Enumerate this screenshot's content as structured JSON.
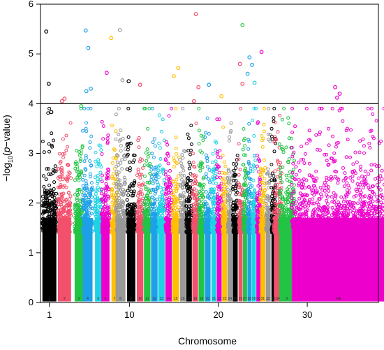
{
  "chart_data": {
    "type": "scatter",
    "title": "",
    "xlabel": "Chromosome",
    "ylabel_prefix": "−log",
    "ylabel_sub": "10",
    "ylabel_open": "(",
    "ylabel_italic": "p",
    "ylabel_rest": "−value)",
    "ylim": [
      0,
      6
    ],
    "xlim": [
      0,
      38
    ],
    "y_ticks": [
      "0",
      "1",
      "2",
      "3",
      "4",
      "5",
      "6"
    ],
    "x_ticks": [
      {
        "x": 1,
        "label": "1"
      },
      {
        "x": 10,
        "label": "10"
      },
      {
        "x": 20,
        "label": "20"
      },
      {
        "x": 30,
        "label": "30"
      }
    ],
    "threshold": 4,
    "colors": [
      "#000000",
      "#F2506C",
      "#22C444",
      "#1EA0E8",
      "#1DD3E3",
      "#EE00CC",
      "#FFC000",
      "#999999"
    ],
    "chromosome_labels": [
      "1",
      "2",
      "3",
      "4",
      "5",
      "6",
      "7",
      "8",
      "9",
      "10",
      "11",
      "12",
      "13",
      "14",
      "15",
      "16",
      "17",
      "18",
      "19",
      "20",
      "21",
      "22",
      "23",
      "24",
      "25",
      "26",
      "27",
      "28",
      "29",
      "30",
      "31",
      "32",
      "33",
      "34",
      "X",
      "NA"
    ],
    "chromosome_x_centers": [
      1.0,
      2.7,
      4.3,
      5.3,
      6.5,
      7.3,
      8.3,
      9.0,
      10.2,
      11.2,
      12.0,
      12.8,
      13.6,
      14.4,
      15.2,
      16.0,
      16.7,
      17.4,
      18.1,
      18.8,
      19.5,
      20.1,
      20.7,
      21.3,
      21.9,
      22.5,
      23.0,
      23.5,
      24.0,
      24.5,
      25.0,
      25.6,
      26.2,
      26.7,
      27.7,
      33.5
    ],
    "chromosome_palette_index": [
      0,
      1,
      2,
      3,
      4,
      5,
      6,
      7,
      0,
      1,
      2,
      3,
      4,
      5,
      6,
      7,
      0,
      1,
      2,
      3,
      4,
      5,
      6,
      7,
      0,
      1,
      2,
      3,
      4,
      5,
      6,
      7,
      0,
      1,
      2,
      5
    ],
    "significant_hits": [
      {
        "chr": "1",
        "y": 5.45
      },
      {
        "chr": "1",
        "y": 4.4
      },
      {
        "chr": "1",
        "y": 3.83
      },
      {
        "chr": "2",
        "y": 4.05
      },
      {
        "chr": "2",
        "y": 4.1
      },
      {
        "chr": "3",
        "y": 3.95
      },
      {
        "chr": "4",
        "y": 5.47
      },
      {
        "chr": "4",
        "y": 5.12
      },
      {
        "chr": "4",
        "y": 4.3
      },
      {
        "chr": "4",
        "y": 4.25
      },
      {
        "chr": "6",
        "y": 4.62
      },
      {
        "chr": "7",
        "y": 5.32
      },
      {
        "chr": "8",
        "y": 5.48
      },
      {
        "chr": "8",
        "y": 4.47
      },
      {
        "chr": "9",
        "y": 4.45
      },
      {
        "chr": "10",
        "y": 4.38
      },
      {
        "chr": "15",
        "y": 4.72
      },
      {
        "chr": "15",
        "y": 4.55
      },
      {
        "chr": "18",
        "y": 5.8
      },
      {
        "chr": "18",
        "y": 4.33
      },
      {
        "chr": "18",
        "y": 4.05
      },
      {
        "chr": "20",
        "y": 4.38
      },
      {
        "chr": "23",
        "y": 4.15
      },
      {
        "chr": "26",
        "y": 4.8
      },
      {
        "chr": "26",
        "y": 4.4
      },
      {
        "chr": "27",
        "y": 5.58
      },
      {
        "chr": "28",
        "y": 4.93
      },
      {
        "chr": "28",
        "y": 4.78
      },
      {
        "chr": "28",
        "y": 4.6
      },
      {
        "chr": "29",
        "y": 4.42
      },
      {
        "chr": "30",
        "y": 5.04
      },
      {
        "chr": "NA",
        "y": 4.12
      },
      {
        "chr": "NA",
        "y": 4.2
      },
      {
        "chr": "NA",
        "y": 4.33
      }
    ]
  }
}
